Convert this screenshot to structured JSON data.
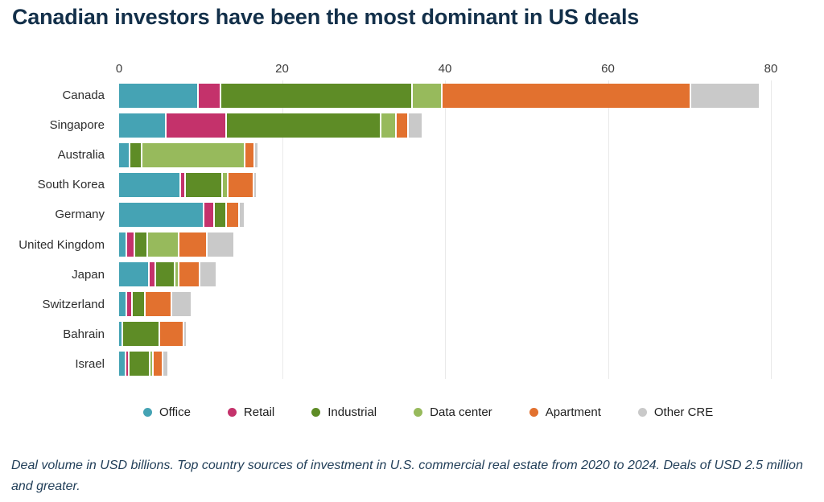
{
  "title": "Canadian investors have been the most dominant in US deals",
  "footnote": "Deal volume in USD billions. Top country sources of investment in U.S. commercial real estate from 2020 to 2024. Deals of USD 2.5 million and greater.",
  "colors": {
    "office": "#45a3b4",
    "retail": "#c4326b",
    "industrial": "#5e8c26",
    "data_center": "#97ba5c",
    "apartment": "#e2712f",
    "other_cre": "#c9c9c9",
    "title_text": "#13304a",
    "axis_text": "#3c3c3c",
    "gridline": "#e9e9e9"
  },
  "chart_data": {
    "type": "bar",
    "orientation": "horizontal",
    "stacked": true,
    "title": "Canadian investors have been the most dominant in US deals",
    "units": "USD billions",
    "categories": [
      "Canada",
      "Singapore",
      "Australia",
      "South Korea",
      "Germany",
      "United Kingdom",
      "Japan",
      "Switzerland",
      "Bahrain",
      "Israel"
    ],
    "series": [
      {
        "name": "Office",
        "color": "#45a3b4",
        "values": [
          9.6,
          5.6,
          1.2,
          7.4,
          10.3,
          0.8,
          3.6,
          0.8,
          0.3,
          0.7
        ]
      },
      {
        "name": "Retail",
        "color": "#c4326b",
        "values": [
          2.5,
          7.2,
          0,
          0.4,
          1.1,
          0.8,
          0.5,
          0.5,
          0,
          0.2
        ]
      },
      {
        "name": "Industrial",
        "color": "#5e8c26",
        "values": [
          23.4,
          18.8,
          1.3,
          4.3,
          1.2,
          1.4,
          2.2,
          1.4,
          4.3,
          2.4
        ]
      },
      {
        "name": "Data center",
        "color": "#97ba5c",
        "values": [
          3.4,
          1.7,
          12.4,
          0.5,
          0,
          3.6,
          0.3,
          0,
          0,
          0.2
        ]
      },
      {
        "name": "Apartment",
        "color": "#e2712f",
        "values": [
          30.3,
          1.3,
          1.0,
          3.0,
          1.4,
          3.3,
          2.4,
          3.0,
          2.8,
          0.9
        ]
      },
      {
        "name": "Other CRE",
        "color": "#c9c9c9",
        "values": [
          8.3,
          1.6,
          0.3,
          0.2,
          0.5,
          3.1,
          1.9,
          2.3,
          0.2,
          0.5
        ]
      }
    ],
    "totals": [
      77.5,
      36.2,
      16.2,
      15.8,
      14.5,
      13.0,
      10.9,
      8.0,
      7.6,
      4.9
    ],
    "xlim": [
      0,
      80
    ],
    "x_ticks": [
      0,
      20,
      40,
      60,
      80
    ],
    "axis_position": "top",
    "legend_position": "bottom",
    "grid": true
  }
}
